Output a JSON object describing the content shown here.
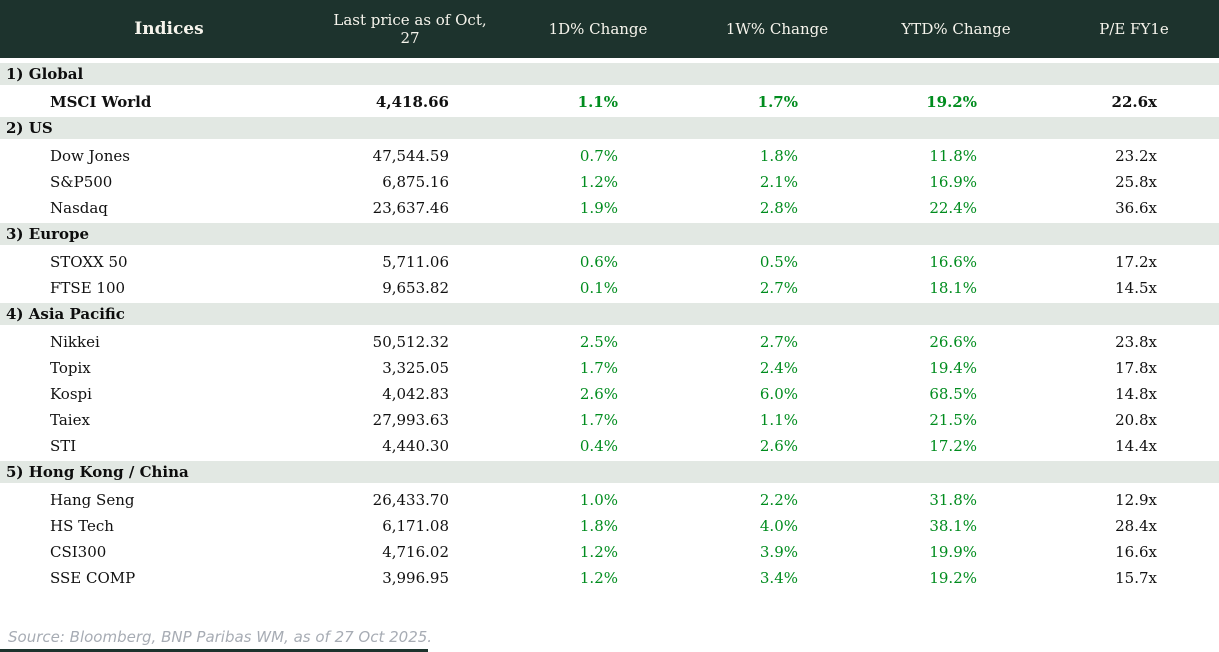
{
  "header": {
    "title": "Indices",
    "columns": {
      "last_price": "Last price as of Oct, 27",
      "d1": "1D% Change",
      "w1": "1W% Change",
      "ytd": "YTD% Change",
      "pe": "P/E FY1e"
    }
  },
  "sections": [
    {
      "label": "1) Global",
      "rows": [
        {
          "name": "MSCI World",
          "last": "4,418.66",
          "d1": "1.1%",
          "w1": "1.7%",
          "ytd": "19.2%",
          "pe": "22.6x",
          "bold": true
        }
      ]
    },
    {
      "label": "2) US",
      "rows": [
        {
          "name": "Dow Jones",
          "last": "47,544.59",
          "d1": "0.7%",
          "w1": "1.8%",
          "ytd": "11.8%",
          "pe": "23.2x",
          "bold": false
        },
        {
          "name": "S&P500",
          "last": "6,875.16",
          "d1": "1.2%",
          "w1": "2.1%",
          "ytd": "16.9%",
          "pe": "25.8x",
          "bold": false
        },
        {
          "name": "Nasdaq",
          "last": "23,637.46",
          "d1": "1.9%",
          "w1": "2.8%",
          "ytd": "22.4%",
          "pe": "36.6x",
          "bold": false
        }
      ]
    },
    {
      "label": "3) Europe",
      "rows": [
        {
          "name": "STOXX 50",
          "last": "5,711.06",
          "d1": "0.6%",
          "w1": "0.5%",
          "ytd": "16.6%",
          "pe": "17.2x",
          "bold": false
        },
        {
          "name": "FTSE 100",
          "last": "9,653.82",
          "d1": "0.1%",
          "w1": "2.7%",
          "ytd": "18.1%",
          "pe": "14.5x",
          "bold": false
        }
      ]
    },
    {
      "label": "4) Asia Pacific",
      "rows": [
        {
          "name": "Nikkei",
          "last": "50,512.32",
          "d1": "2.5%",
          "w1": "2.7%",
          "ytd": "26.6%",
          "pe": "23.8x",
          "bold": false
        },
        {
          "name": "Topix",
          "last": "3,325.05",
          "d1": "1.7%",
          "w1": "2.4%",
          "ytd": "19.4%",
          "pe": "17.8x",
          "bold": false
        },
        {
          "name": "Kospi",
          "last": "4,042.83",
          "d1": "2.6%",
          "w1": "6.0%",
          "ytd": "68.5%",
          "pe": "14.8x",
          "bold": false
        },
        {
          "name": "Taiex",
          "last": "27,993.63",
          "d1": "1.7%",
          "w1": "1.1%",
          "ytd": "21.5%",
          "pe": "20.8x",
          "bold": false
        },
        {
          "name": "STI",
          "last": "4,440.30",
          "d1": "0.4%",
          "w1": "2.6%",
          "ytd": "17.2%",
          "pe": "14.4x",
          "bold": false
        }
      ]
    },
    {
      "label": "5) Hong Kong / China",
      "rows": [
        {
          "name": "Hang Seng",
          "last": "26,433.70",
          "d1": "1.0%",
          "w1": "2.2%",
          "ytd": "31.8%",
          "pe": "12.9x",
          "bold": false
        },
        {
          "name": "HS Tech",
          "last": "6,171.08",
          "d1": "1.8%",
          "w1": "4.0%",
          "ytd": "38.1%",
          "pe": "28.4x",
          "bold": false
        },
        {
          "name": "CSI300",
          "last": "4,716.02",
          "d1": "1.2%",
          "w1": "3.9%",
          "ytd": "19.9%",
          "pe": "16.6x",
          "bold": false
        },
        {
          "name": "SSE COMP",
          "last": "3,996.95",
          "d1": "1.2%",
          "w1": "3.4%",
          "ytd": "19.2%",
          "pe": "15.7x",
          "bold": false
        }
      ]
    }
  ],
  "footer": {
    "source": "Source: Bloomberg, BNP Paribas WM, as of 27 Oct 2025."
  },
  "colors": {
    "header_bg": "#1d332d",
    "header_text": "#f6f4ec",
    "section_bg": "#e2e8e3",
    "positive_green": "#008c1e",
    "body_text": "#111111",
    "footer_gray": "#a7acb4"
  }
}
